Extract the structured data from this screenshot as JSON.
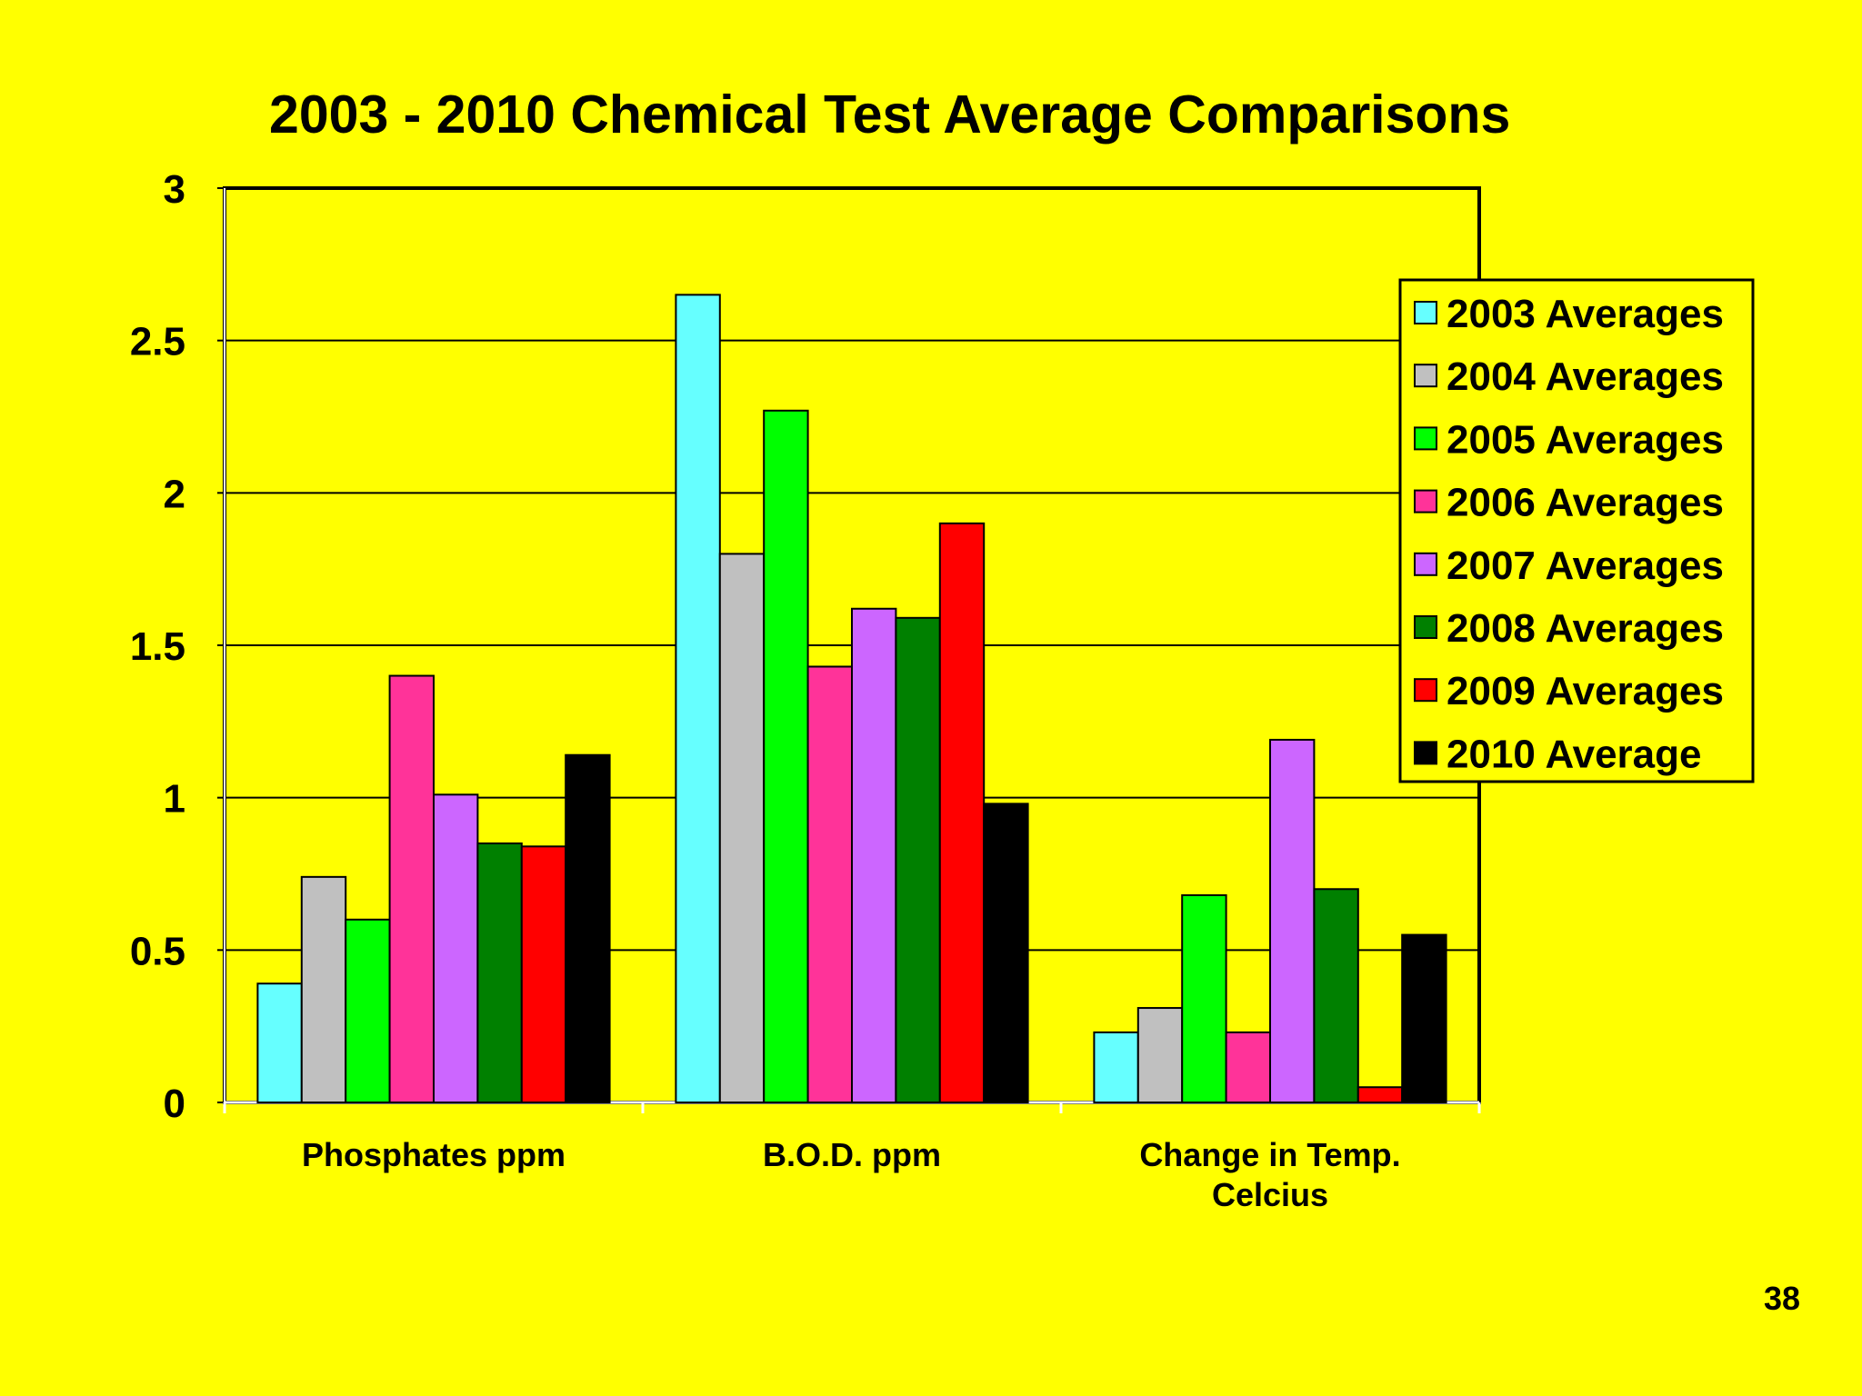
{
  "slide": {
    "page_number": "38"
  },
  "chart_data": {
    "type": "bar",
    "title": "2003 - 2010 Chemical Test Average Comparisons",
    "xlabel": "",
    "ylabel": "",
    "categories": [
      "Phosphates ppm",
      "B.O.D. ppm",
      "Change in Temp. Celcius"
    ],
    "category_lines": [
      [
        "Phosphates ppm"
      ],
      [
        "B.O.D. ppm"
      ],
      [
        "Change in Temp.",
        "Celcius"
      ]
    ],
    "ylim": [
      0,
      3
    ],
    "yticks": [
      "0",
      "0.5",
      "1",
      "1.5",
      "2",
      "2.5",
      "3"
    ],
    "grid": true,
    "legend_position": "right",
    "series": [
      {
        "name": "2003 Averages",
        "color": "#66ffff",
        "values": [
          0.39,
          2.65,
          0.23
        ]
      },
      {
        "name": "2004 Averages",
        "color": "#c0c0c0",
        "values": [
          0.74,
          1.8,
          0.31
        ]
      },
      {
        "name": "2005 Averages",
        "color": "#00ff00",
        "values": [
          0.6,
          2.27,
          0.68
        ]
      },
      {
        "name": "2006 Averages",
        "color": "#ff3399",
        "values": [
          1.4,
          1.43,
          0.23
        ]
      },
      {
        "name": "2007 Averages",
        "color": "#cc66ff",
        "values": [
          1.01,
          1.62,
          1.19
        ]
      },
      {
        "name": "2008 Averages",
        "color": "#008000",
        "values": [
          0.85,
          1.59,
          0.7
        ]
      },
      {
        "name": "2009 Averages",
        "color": "#ff0000",
        "values": [
          0.84,
          1.9,
          0.05
        ]
      },
      {
        "name": "2010 Average",
        "color": "#000000",
        "values": [
          1.14,
          0.98,
          0.55
        ]
      }
    ]
  }
}
